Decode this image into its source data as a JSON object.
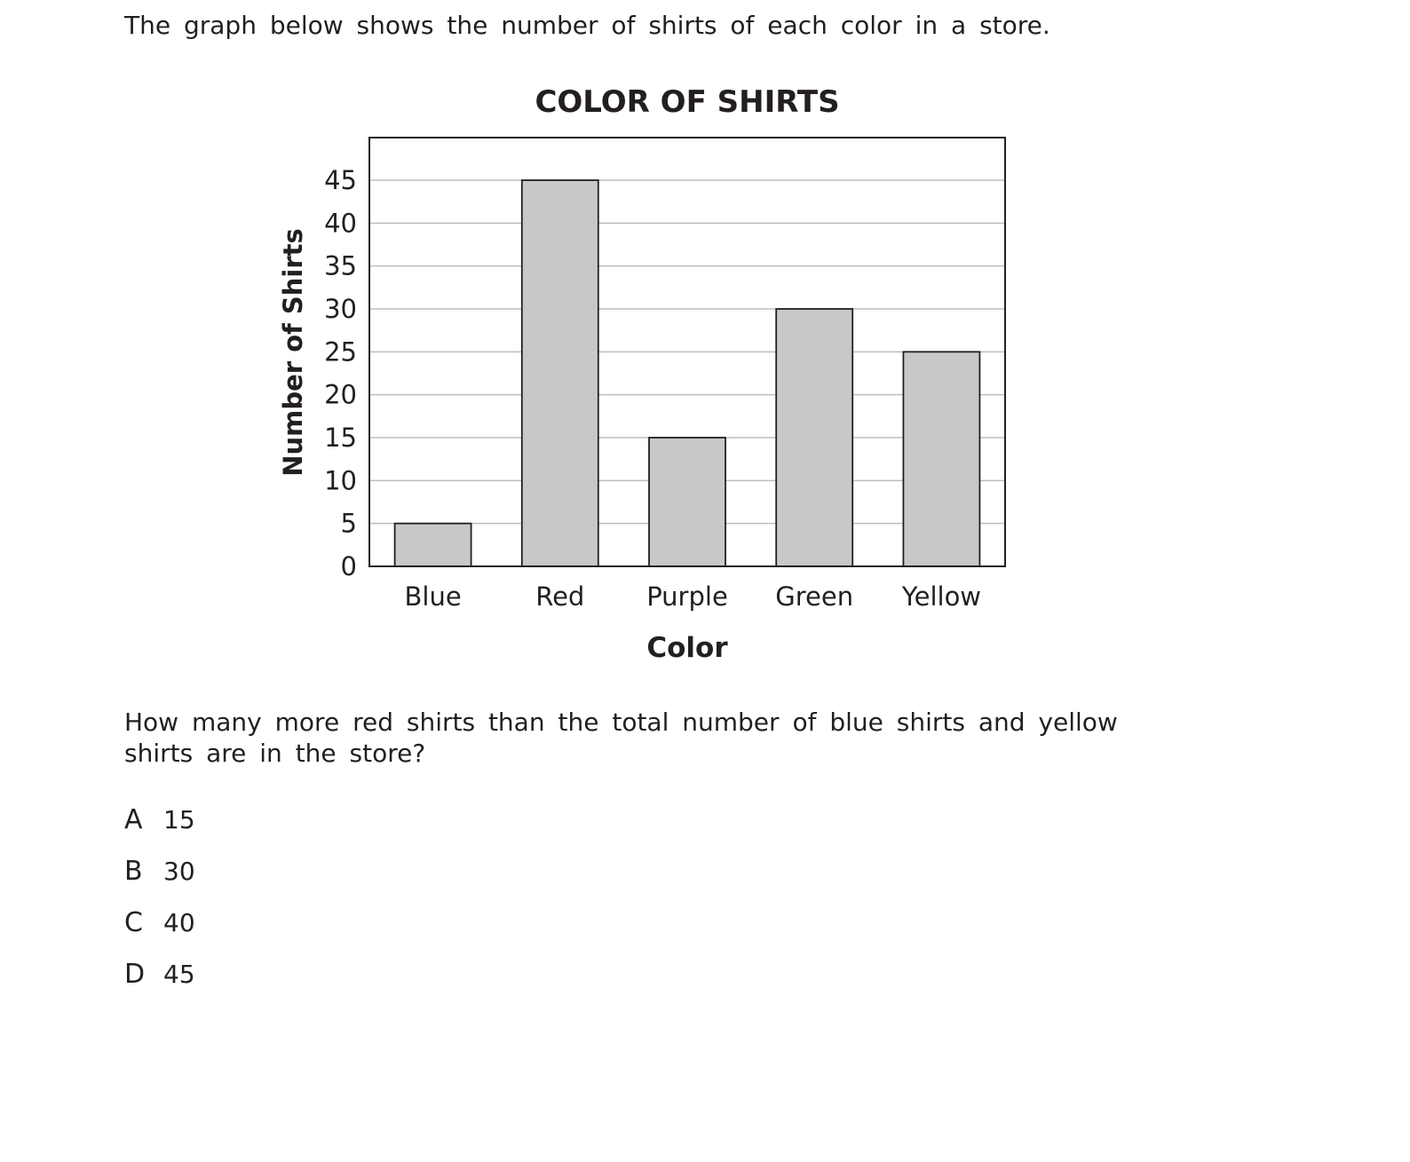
{
  "intro_text": "The graph below shows the number of shirts of each color in a store.",
  "chart_data": {
    "type": "bar",
    "title": "COLOR OF SHIRTS",
    "xlabel": "Color",
    "ylabel": "Number of Shirts",
    "categories": [
      "Blue",
      "Red",
      "Purple",
      "Green",
      "Yellow"
    ],
    "values": [
      5,
      45,
      15,
      30,
      25
    ],
    "ylim": [
      0,
      50
    ],
    "yticks": [
      0,
      5,
      10,
      15,
      20,
      25,
      30,
      35,
      40,
      45
    ],
    "grid": true,
    "bar_color": "#c8c8ca",
    "bar_edge_color": "#231f20",
    "grid_color": "#bdbdbd"
  },
  "question": {
    "text": "How many more red shirts than the total number of blue shirts and yellow shirts are in the store?",
    "choices": [
      {
        "letter": "A",
        "value": "15"
      },
      {
        "letter": "B",
        "value": "30"
      },
      {
        "letter": "C",
        "value": "40"
      },
      {
        "letter": "D",
        "value": "45"
      }
    ]
  }
}
